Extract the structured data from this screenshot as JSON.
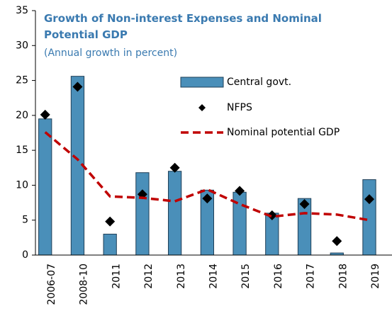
{
  "chart_data": {
    "type": "bar",
    "title": "Growth of Non-interest Expenses and Nominal Potential GDP",
    "subtitle": "(Annual growth in percent)",
    "categories": [
      "2006-07",
      "2008-10",
      "2011",
      "2012",
      "2013",
      "2014",
      "2015",
      "2016",
      "2017",
      "2018",
      "2019"
    ],
    "series": [
      {
        "name": "Central govt.",
        "type": "bar",
        "color": "#4a8fb9",
        "values": [
          19.5,
          25.6,
          3.0,
          11.8,
          12.0,
          9.3,
          9.0,
          6.0,
          8.1,
          0.3,
          10.8
        ]
      },
      {
        "name": "NFPS",
        "type": "scatter",
        "color": "#000000",
        "values": [
          20.1,
          24.1,
          4.8,
          8.7,
          12.5,
          8.1,
          9.2,
          5.7,
          7.3,
          2.0,
          8.0
        ]
      },
      {
        "name": "Nominal potential GDP",
        "type": "line",
        "color": "#c00000",
        "values": [
          17.6,
          13.7,
          8.4,
          8.2,
          7.7,
          9.4,
          7.3,
          5.5,
          6.0,
          5.8,
          5.0
        ]
      }
    ],
    "ylim": [
      0,
      35
    ],
    "yticks": [
      0,
      5,
      10,
      15,
      20,
      25,
      30,
      35
    ],
    "grid": false
  }
}
